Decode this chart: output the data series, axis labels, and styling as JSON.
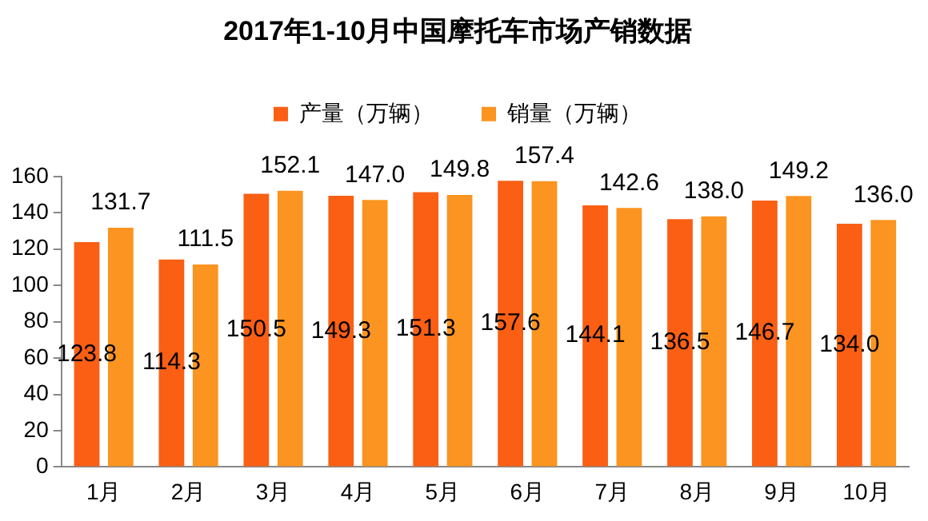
{
  "chart_data": {
    "type": "bar",
    "title": "2017年1-10月中国摩托车市场产销数据",
    "categories": [
      "1月",
      "2月",
      "3月",
      "4月",
      "5月",
      "6月",
      "7月",
      "8月",
      "9月",
      "10月"
    ],
    "series": [
      {
        "name": "产量（万辆）",
        "color": "#fa5f14",
        "values": [
          123.8,
          114.3,
          150.5,
          149.3,
          151.3,
          157.6,
          144.1,
          136.5,
          146.7,
          134.0
        ],
        "value_labels": [
          "123.8",
          "114.3",
          "150.5",
          "149.3",
          "151.3",
          "157.6",
          "144.1",
          "136.5",
          "146.7",
          "134.0"
        ]
      },
      {
        "name": "销量（万辆）",
        "color": "#fb9420",
        "values": [
          131.7,
          111.5,
          152.1,
          147.0,
          149.8,
          157.4,
          142.6,
          138.0,
          149.2,
          136.0
        ],
        "value_labels": [
          "131.7",
          "111.5",
          "152.1",
          "147.0",
          "149.8",
          "157.4",
          "142.6",
          "138.0",
          "149.2",
          "136.0"
        ]
      }
    ],
    "ylim": [
      0,
      160
    ],
    "yticks": [
      0,
      20,
      40,
      60,
      80,
      100,
      120,
      140,
      160
    ],
    "grid": false,
    "legend": "top"
  }
}
